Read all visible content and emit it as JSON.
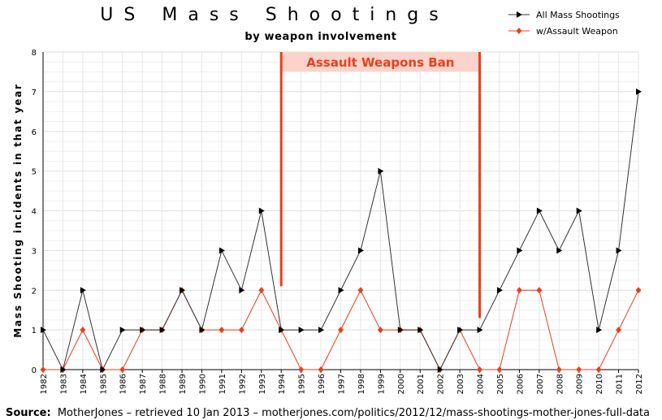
{
  "chart_data": {
    "type": "line",
    "title": "US Mass Shootings",
    "subtitle": "by weapon involvement",
    "xlabel": "",
    "ylabel": "Mass Shooting incidents in that year",
    "categories": [
      "1982",
      "1983",
      "1984",
      "1985",
      "1986",
      "1987",
      "1988",
      "1989",
      "1990",
      "1991",
      "1992",
      "1993",
      "1994",
      "1995",
      "1996",
      "1997",
      "1998",
      "1999",
      "2000",
      "2001",
      "2002",
      "2003",
      "2004",
      "2005",
      "2006",
      "2007",
      "2008",
      "2009",
      "2010",
      "2011",
      "2012"
    ],
    "ylim": [
      0,
      8
    ],
    "yticks": [
      "0",
      "1",
      "2",
      "3",
      "4",
      "5",
      "6",
      "7",
      "8"
    ],
    "grid": true,
    "legend_position": "top-right",
    "series": [
      {
        "name": "All Mass Shootings",
        "color": "#333333",
        "marker": "triangle",
        "values": [
          1,
          0,
          2,
          0,
          1,
          1,
          1,
          2,
          1,
          3,
          2,
          4,
          1,
          1,
          1,
          2,
          3,
          5,
          1,
          1,
          0,
          1,
          1,
          2,
          3,
          4,
          3,
          4,
          1,
          3,
          7
        ]
      },
      {
        "name": "w/Assault Weapon",
        "color": "#e8401c",
        "marker": "diamond",
        "values": [
          0,
          0,
          1,
          0,
          0,
          1,
          1,
          2,
          1,
          1,
          1,
          2,
          1,
          0,
          0,
          1,
          2,
          1,
          1,
          1,
          0,
          1,
          0,
          0,
          2,
          2,
          0,
          0,
          0,
          1,
          2
        ]
      }
    ],
    "annotations": [
      {
        "type": "span",
        "label": "Assault Weapons Ban",
        "from": "1994",
        "to": "2004",
        "color": "#e8401c"
      }
    ]
  },
  "source": {
    "label": "Source:",
    "text": "MotherJones –  retrieved 10  Jan 2013  –  motherjones.com/politics/2012/12/mass-shootings-mother-jones-full-data"
  }
}
